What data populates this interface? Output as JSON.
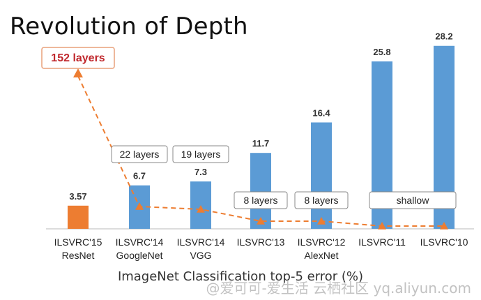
{
  "chart_data": {
    "type": "bar",
    "title": "Revolution of Depth",
    "xlabel": "ImageNet Classification top-5 error (%)",
    "ylabel": "",
    "ylim": [
      0,
      30
    ],
    "categories": [
      [
        "ILSVRC'15",
        "ResNet"
      ],
      [
        "ILSVRC'14",
        "GoogleNet"
      ],
      [
        "ILSVRC'14",
        "VGG"
      ],
      [
        "ILSVRC'13",
        ""
      ],
      [
        "ILSVRC'12",
        "AlexNet"
      ],
      [
        "ILSVRC'11",
        ""
      ],
      [
        "ILSVRC'10",
        ""
      ]
    ],
    "values": [
      3.57,
      6.7,
      7.3,
      11.7,
      16.4,
      25.8,
      28.2
    ],
    "value_labels": [
      "3.57",
      "6.7",
      "7.3",
      "11.7",
      "16.4",
      "25.8",
      "28.2"
    ],
    "bar_colors": [
      "#ed7d31",
      "#5b9bd5",
      "#5b9bd5",
      "#5b9bd5",
      "#5b9bd5",
      "#5b9bd5",
      "#5b9bd5"
    ],
    "depth_labels": [
      "152 layers",
      "22 layers",
      "19 layers",
      "8 layers",
      "8 layers",
      "shallow"
    ],
    "depth_line_color": "#ed7d31",
    "grid": false
  },
  "watermark": "@爱可可-爱生活   云栖社区 yq.aliyun.com"
}
